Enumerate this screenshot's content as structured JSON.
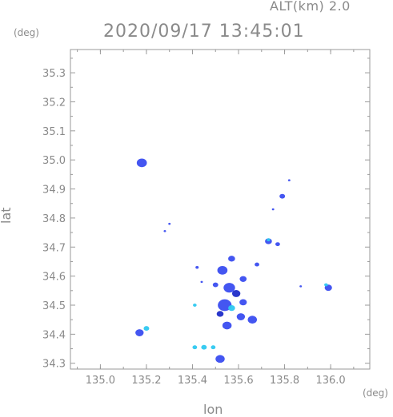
{
  "header": {
    "alt_label": "ALT(km)  2.0",
    "timestamp": "2020/09/17 13:45:01"
  },
  "chart_data": {
    "type": "heatmap",
    "xlabel": "lon",
    "ylabel": "lat",
    "x_unit": "(deg)",
    "y_unit": "(deg)",
    "xlim": [
      134.87,
      136.17
    ],
    "ylim": [
      34.28,
      35.38
    ],
    "x_ticks": [
      135.0,
      135.2,
      135.4,
      135.6,
      135.8,
      136.0
    ],
    "x_tick_labels": [
      "135.0",
      "135.2",
      "135.4",
      "135.6",
      "135.8",
      "136.0"
    ],
    "y_ticks": [
      34.3,
      34.4,
      34.5,
      34.6,
      34.7,
      34.8,
      34.9,
      35.0,
      35.1,
      35.2,
      35.3
    ],
    "y_tick_labels": [
      "34.3",
      "34.4",
      "34.5",
      "34.6",
      "34.7",
      "34.8",
      "34.9",
      "35.0",
      "35.1",
      "35.2",
      "35.3"
    ],
    "grid": false,
    "colors": {
      "axis": "#9a9a9a",
      "echo_blue": "#3a4df0",
      "echo_light": "#2ec8f0",
      "echo_dark": "#1f2cc8"
    },
    "echo_cells": [
      {
        "lon": 135.18,
        "lat": 34.99,
        "size": 0.022,
        "color": "#3a4df0"
      },
      {
        "lon": 135.17,
        "lat": 34.405,
        "size": 0.018,
        "color": "#3a4df0"
      },
      {
        "lon": 135.2,
        "lat": 34.42,
        "size": 0.012,
        "color": "#2ec8f0"
      },
      {
        "lon": 135.52,
        "lat": 34.315,
        "size": 0.02,
        "color": "#3a4df0"
      },
      {
        "lon": 135.45,
        "lat": 34.355,
        "size": 0.012,
        "color": "#2ec8f0"
      },
      {
        "lon": 135.41,
        "lat": 34.355,
        "size": 0.01,
        "color": "#2ec8f0"
      },
      {
        "lon": 135.49,
        "lat": 34.355,
        "size": 0.01,
        "color": "#2ec8f0"
      },
      {
        "lon": 135.54,
        "lat": 34.5,
        "size": 0.03,
        "color": "#3a4df0"
      },
      {
        "lon": 135.56,
        "lat": 34.56,
        "size": 0.025,
        "color": "#3a4df0"
      },
      {
        "lon": 135.53,
        "lat": 34.62,
        "size": 0.022,
        "color": "#3a4df0"
      },
      {
        "lon": 135.57,
        "lat": 34.66,
        "size": 0.015,
        "color": "#3a4df0"
      },
      {
        "lon": 135.55,
        "lat": 34.43,
        "size": 0.02,
        "color": "#3a4df0"
      },
      {
        "lon": 135.61,
        "lat": 34.46,
        "size": 0.018,
        "color": "#3a4df0"
      },
      {
        "lon": 135.66,
        "lat": 34.45,
        "size": 0.02,
        "color": "#3a4df0"
      },
      {
        "lon": 135.62,
        "lat": 34.59,
        "size": 0.015,
        "color": "#3a4df0"
      },
      {
        "lon": 135.62,
        "lat": 34.51,
        "size": 0.016,
        "color": "#3a4df0"
      },
      {
        "lon": 135.68,
        "lat": 34.64,
        "size": 0.01,
        "color": "#3a4df0"
      },
      {
        "lon": 135.5,
        "lat": 34.57,
        "size": 0.012,
        "color": "#3a4df0"
      },
      {
        "lon": 135.59,
        "lat": 34.54,
        "size": 0.018,
        "color": "#1f2cc8"
      },
      {
        "lon": 135.52,
        "lat": 34.47,
        "size": 0.015,
        "color": "#1f2cc8"
      },
      {
        "lon": 135.57,
        "lat": 34.49,
        "size": 0.015,
        "color": "#2ec8f0"
      },
      {
        "lon": 135.73,
        "lat": 34.72,
        "size": 0.015,
        "color": "#3a4df0"
      },
      {
        "lon": 135.73,
        "lat": 34.725,
        "size": 0.008,
        "color": "#2ec8f0"
      },
      {
        "lon": 135.77,
        "lat": 34.71,
        "size": 0.01,
        "color": "#3a4df0"
      },
      {
        "lon": 135.79,
        "lat": 34.875,
        "size": 0.012,
        "color": "#3a4df0"
      },
      {
        "lon": 135.99,
        "lat": 34.56,
        "size": 0.016,
        "color": "#3a4df0"
      },
      {
        "lon": 135.98,
        "lat": 34.57,
        "size": 0.008,
        "color": "#2ec8f0"
      },
      {
        "lon": 135.41,
        "lat": 34.5,
        "size": 0.008,
        "color": "#2ec8f0"
      },
      {
        "lon": 135.42,
        "lat": 34.63,
        "size": 0.007,
        "color": "#3a4df0"
      },
      {
        "lon": 135.44,
        "lat": 34.58,
        "size": 0.005,
        "color": "#3a4df0"
      },
      {
        "lon": 135.75,
        "lat": 34.83,
        "size": 0.004,
        "color": "#3a4df0"
      },
      {
        "lon": 135.82,
        "lat": 34.93,
        "size": 0.004,
        "color": "#3a4df0"
      },
      {
        "lon": 135.3,
        "lat": 34.78,
        "size": 0.005,
        "color": "#3a4df0"
      },
      {
        "lon": 135.28,
        "lat": 34.755,
        "size": 0.005,
        "color": "#3a4df0"
      },
      {
        "lon": 135.87,
        "lat": 34.565,
        "size": 0.004,
        "color": "#3a4df0"
      }
    ]
  }
}
